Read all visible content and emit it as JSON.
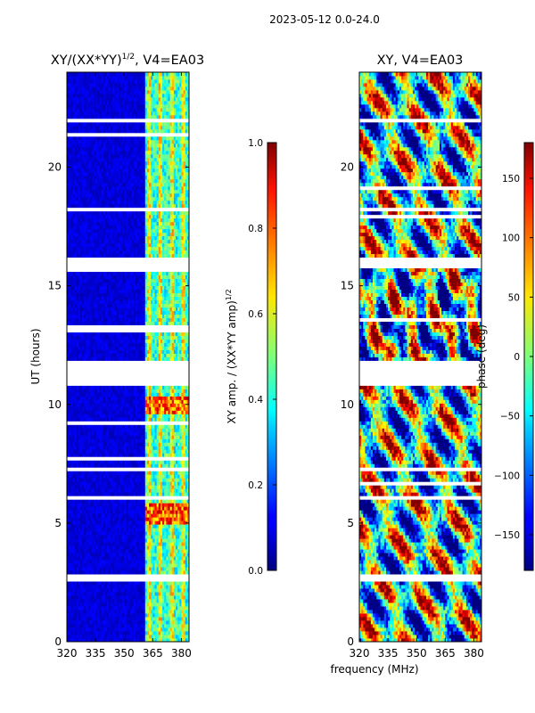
{
  "figure": {
    "suptitle": "2023-05-12 0.0-24.0",
    "xlabel_shared": "frequency (MHz)"
  },
  "chart_data": [
    {
      "type": "heatmap",
      "title": "XY/(XX*YY)^1/2, V4=EA03",
      "title_main": "XY/(XX*YY)",
      "title_sup": "1/2",
      "title_tail": ", V4=EA03",
      "xlabel": "frequency (MHz)",
      "ylabel": "UT (hours)",
      "xlim": [
        320,
        384
      ],
      "ylim": [
        0,
        24
      ],
      "xticks": [
        320,
        335,
        350,
        365,
        380
      ],
      "yticks": [
        0,
        5,
        10,
        15,
        20
      ],
      "colorbar": {
        "label": "XY amp. / (XX*YY amp)^1/2",
        "label_main": "XY amp. / (XX*YY amp)",
        "label_sup": "1/2",
        "range": [
          0.0,
          1.0
        ],
        "ticks": [
          "0.0",
          "0.2",
          "0.4",
          "0.6",
          "0.8",
          "1.0"
        ],
        "tick_values": [
          0.0,
          0.2,
          0.4,
          0.6,
          0.8,
          1.0
        ]
      },
      "gaps_hours": [
        [
          10.8,
          11.9
        ],
        [
          15.7,
          16.2
        ],
        [
          21.9,
          22.1
        ],
        [
          2.6,
          2.8
        ],
        [
          6.0,
          6.2
        ],
        [
          7.2,
          7.35
        ],
        [
          18.2,
          18.35
        ]
      ],
      "high_band_mhz": [
        361,
        384
      ]
    },
    {
      "type": "heatmap",
      "title": "XY, V4=EA03",
      "xlabel": "frequency (MHz)",
      "ylabel": "",
      "xlim": [
        320,
        384
      ],
      "ylim": [
        0,
        24
      ],
      "xticks": [
        320,
        335,
        350,
        365,
        380
      ],
      "yticks": [
        0,
        5,
        10,
        15,
        20
      ],
      "colorbar": {
        "label": "phase (deg)",
        "range": [
          -180,
          180
        ],
        "ticks": [
          "150",
          "100",
          "50",
          "0",
          "−50",
          "−100",
          "−150"
        ],
        "tick_values": [
          150,
          100,
          50,
          0,
          -50,
          -100,
          -150
        ]
      },
      "gaps_hours": [
        [
          10.8,
          11.9
        ],
        [
          15.7,
          16.2
        ],
        [
          21.9,
          22.1
        ],
        [
          2.6,
          2.8
        ],
        [
          6.0,
          6.2
        ],
        [
          7.2,
          7.35
        ],
        [
          18.2,
          18.35
        ]
      ]
    }
  ]
}
